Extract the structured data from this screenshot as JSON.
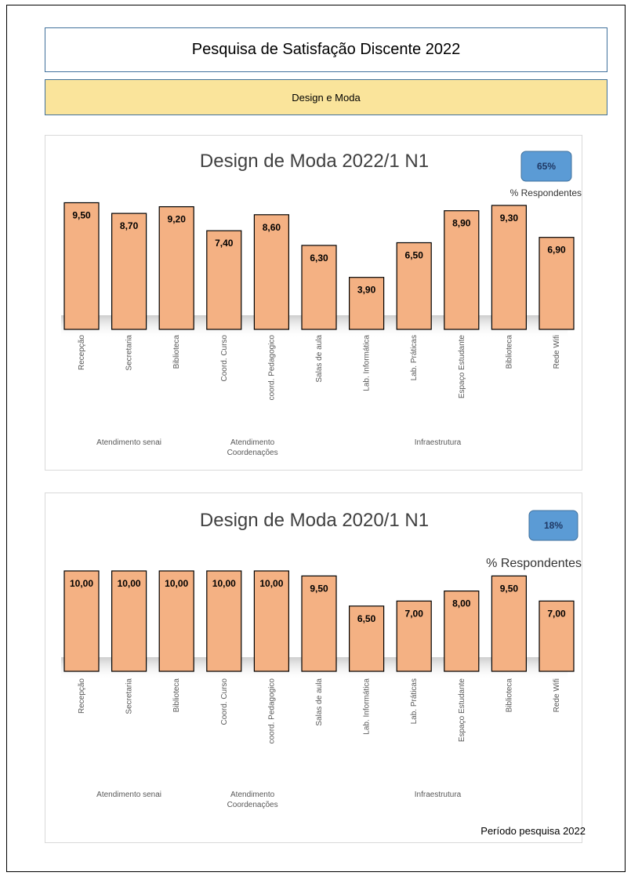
{
  "header": {
    "title": "Pesquisa de Satisfação Discente 2022",
    "subtitle": "Design e Moda"
  },
  "footer": {
    "text": "Período pesquisa 2022"
  },
  "chart_data": [
    {
      "type": "bar",
      "title": "Design de Moda 2022/1 N1",
      "respondents_pct": "65%",
      "respondents_label": "% Respondentes",
      "categories": [
        "Recepção",
        "Secretaria",
        "Biblioteca",
        "Coord. Curso",
        "coord. Pedagogico",
        "Salas de aula",
        "Lab. Informática",
        "Lab. Práticas",
        "Espaço Estudante",
        "Biblioteca",
        "Rede Wifi"
      ],
      "values": [
        9.5,
        8.7,
        9.2,
        7.4,
        8.6,
        6.3,
        3.9,
        6.5,
        8.9,
        9.3,
        6.9
      ],
      "value_labels": [
        "9,50",
        "8,70",
        "9,20",
        "7,40",
        "8,60",
        "6,30",
        "3,90",
        "6,50",
        "8,90",
        "9,30",
        "6,90"
      ],
      "groups": [
        {
          "label_lines": [
            "Atendimento senai"
          ],
          "start": 0,
          "end": 2
        },
        {
          "label_lines": [
            "Atendimento",
            "Coordenações"
          ],
          "start": 3,
          "end": 4
        },
        {
          "label_lines": [
            "Infraestrutura"
          ],
          "start": 5,
          "end": 10
        }
      ],
      "ylim": [
        0,
        10
      ],
      "bar_color": "#f4b183",
      "bar_border": "#000000"
    },
    {
      "type": "bar",
      "title": "Design de Moda 2020/1 N1",
      "respondents_pct": "18%",
      "respondents_label": "% Respondentes",
      "categories": [
        "Recepção",
        "Secretaria",
        "Biblioteca",
        "Coord. Curso",
        "coord. Pedagogico",
        "Salas de aula",
        "Lab. Informática",
        "Lab. Práticas",
        "Espaço Estudante",
        "Biblioteca",
        "Rede Wifi"
      ],
      "values": [
        10,
        10,
        10,
        10,
        10,
        9.5,
        6.5,
        7.0,
        8.0,
        9.5,
        7.0
      ],
      "value_labels": [
        "10,00",
        "10,00",
        "10,00",
        "10,00",
        "10,00",
        "9,50",
        "6,50",
        "7,00",
        "8,00",
        "9,50",
        "7,00"
      ],
      "groups": [
        {
          "label_lines": [
            "Atendimento senai"
          ],
          "start": 0,
          "end": 2
        },
        {
          "label_lines": [
            "Atendimento",
            "Coordenações"
          ],
          "start": 3,
          "end": 4
        },
        {
          "label_lines": [
            "Infraestrutura"
          ],
          "start": 5,
          "end": 10
        }
      ],
      "ylim": [
        0,
        10
      ],
      "bar_color": "#f4b183",
      "bar_border": "#000000"
    }
  ]
}
